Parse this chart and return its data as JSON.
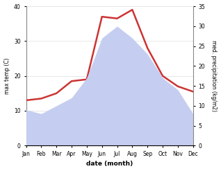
{
  "months": [
    "Jan",
    "Feb",
    "Mar",
    "Apr",
    "May",
    "Jun",
    "Jul",
    "Aug",
    "Sep",
    "Oct",
    "Nov",
    "Dec"
  ],
  "temp_max": [
    13.0,
    13.5,
    15.0,
    18.5,
    19.0,
    37.0,
    36.5,
    39.0,
    28.0,
    20.0,
    17.0,
    15.5
  ],
  "precip": [
    9,
    8,
    10,
    12,
    17,
    27,
    30,
    27,
    23,
    17,
    14,
    8
  ],
  "temp_color": "#cc3333",
  "precip_fill_color": "#c5cef0",
  "left_ylim": [
    0,
    40
  ],
  "right_ylim": [
    0,
    35
  ],
  "left_yticks": [
    0,
    10,
    20,
    30,
    40
  ],
  "right_yticks": [
    0,
    5,
    10,
    15,
    20,
    25,
    30,
    35
  ],
  "ylabel_left": "max temp (C)",
  "ylabel_right": "med. precipitation (kg/m2)",
  "xlabel": "date (month)",
  "bg_color": "#f5f5f5"
}
